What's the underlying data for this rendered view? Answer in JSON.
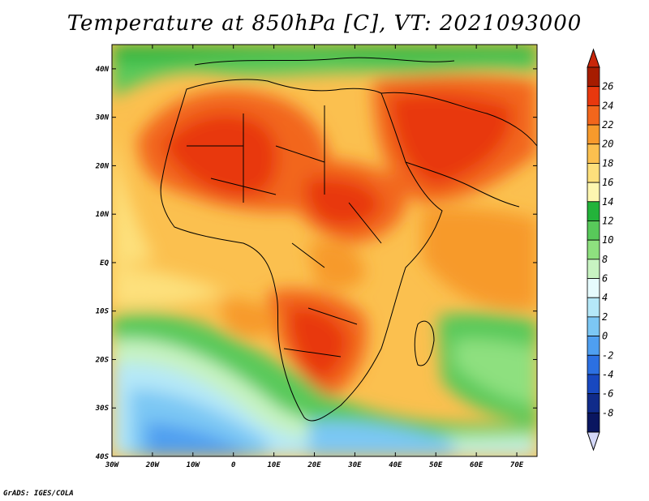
{
  "title": "Temperature at 850hPa [C], VT: 2021093000",
  "credit": "GrADS: IGES/COLA",
  "map": {
    "lon_labels": [
      "30W",
      "20W",
      "10W",
      "0",
      "10E",
      "20E",
      "30E",
      "40E",
      "50E",
      "60E",
      "70E"
    ],
    "lat_labels": [
      "40N",
      "30N",
      "20N",
      "10N",
      "EQ",
      "10S",
      "20S",
      "30S",
      "40S"
    ],
    "lon_range": [
      -30,
      75
    ],
    "lat_range": [
      -40,
      45
    ]
  },
  "colorbar": {
    "labels": [
      "26",
      "24",
      "22",
      "20",
      "18",
      "16",
      "14",
      "12",
      "10",
      "8",
      "6",
      "4",
      "2",
      "0",
      "-2",
      "-4",
      "-6",
      "-8"
    ],
    "colors": [
      "#a61c00",
      "#e8380e",
      "#f2661c",
      "#f79a2c",
      "#fbc04f",
      "#fde07c",
      "#fdf6b0",
      "#23b33a",
      "#58c95a",
      "#8ee07f",
      "#c8f3c2",
      "#e6fbfd",
      "#b5e8f8",
      "#7cc7f4",
      "#4f9ff0",
      "#2c70e2",
      "#1848c0",
      "#102b8a",
      "#0a1660"
    ],
    "end_colors": {
      "top": "#c8260a",
      "bottom": "#d4d8f8"
    }
  }
}
